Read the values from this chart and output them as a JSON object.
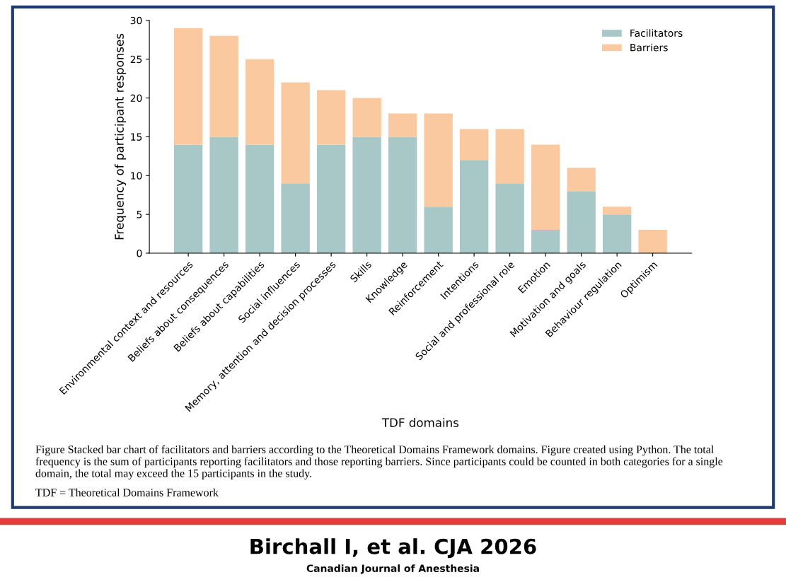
{
  "chart_data": {
    "type": "bar",
    "stacked": true,
    "xlabel": "TDF domains",
    "ylabel": "Frequency of participant responses",
    "categories": [
      "Environmental context and resources",
      "Beliefs about consequences",
      "Beliefs about capabilities",
      "Social influences",
      "Memory, attention and decision processes",
      "Skills",
      "Knowledge",
      "Reinforcement",
      "Intentions",
      "Social and professional role",
      "Emotion",
      "Motivation and goals",
      "Behaviour regulation",
      "Optimism"
    ],
    "series": [
      {
        "name": "Facilitators",
        "color": "#a8c8c8",
        "values": [
          14,
          15,
          14,
          9,
          14,
          15,
          15,
          6,
          12,
          9,
          3,
          8,
          5,
          0
        ]
      },
      {
        "name": "Barriers",
        "color": "#fbc9a0",
        "values": [
          15,
          13,
          11,
          13,
          7,
          5,
          3,
          12,
          4,
          7,
          11,
          3,
          1,
          3
        ]
      }
    ],
    "ylim": [
      0,
      30
    ],
    "yticks": [
      0,
      5,
      10,
      15,
      20,
      25,
      30
    ],
    "grid": false,
    "legend": "top right",
    "annotations": [
      "Figure Stacked bar chart of facilitators and barriers according to the Theoretical Domains Framework domains. Figure created using Python. The total frequency is the sum of participants reporting facilitators and those reporting barriers. Since participants could be counted in both categories for a single domain, the total may exceed the 15 participants in the study.",
      "TDF = Theoretical Domains Framework",
      "Birchall I, et al. CJA 2026",
      "Canadian Journal of Anesthesia"
    ]
  }
}
